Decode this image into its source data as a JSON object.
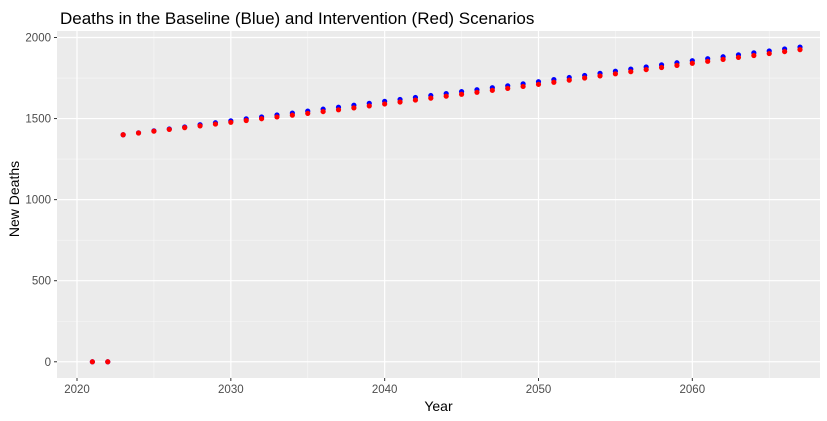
{
  "chart_data": {
    "type": "scatter",
    "title": "Deaths in the Baseline (Blue) and Intervention (Red) Scenarios",
    "xlabel": "Year",
    "ylabel": "New Deaths",
    "xlim": [
      2018.7,
      2068.3
    ],
    "ylim": [
      -100,
      2040
    ],
    "x_ticks": [
      2020,
      2030,
      2040,
      2050,
      2060
    ],
    "x_tick_labels": [
      "2020",
      "2030",
      "2040",
      "2050",
      "2060"
    ],
    "y_ticks": [
      0,
      500,
      1000,
      1500,
      2000
    ],
    "y_tick_labels": [
      "0",
      "500",
      "1000",
      "1500",
      "2000"
    ],
    "grid": true,
    "legend": "none",
    "x": [
      2021,
      2022,
      2023,
      2024,
      2025,
      2026,
      2027,
      2028,
      2029,
      2030,
      2031,
      2032,
      2033,
      2034,
      2035,
      2036,
      2037,
      2038,
      2039,
      2040,
      2041,
      2042,
      2043,
      2044,
      2045,
      2046,
      2047,
      2048,
      2049,
      2050,
      2051,
      2052,
      2053,
      2054,
      2055,
      2056,
      2057,
      2058,
      2059,
      2060,
      2061,
      2062,
      2063,
      2064,
      2065,
      2066,
      2067
    ],
    "series": [
      {
        "color": "#0000ff",
        "values": [
          0,
          0,
          1400,
          1412,
          1424,
          1436,
          1448,
          1462,
          1474,
          1486,
          1498,
          1510,
          1522,
          1534,
          1546,
          1558,
          1570,
          1582,
          1594,
          1606,
          1618,
          1630,
          1642,
          1654,
          1666,
          1678,
          1690,
          1702,
          1714,
          1727,
          1740,
          1753,
          1766,
          1779,
          1792,
          1805,
          1818,
          1831,
          1844,
          1857,
          1869,
          1881,
          1893,
          1905,
          1917,
          1929,
          1941
        ]
      },
      {
        "color": "#ff0000",
        "values": [
          0,
          0,
          1400,
          1411,
          1422,
          1433,
          1444,
          1455,
          1466,
          1477,
          1488,
          1499,
          1510,
          1521,
          1532,
          1543,
          1554,
          1566,
          1578,
          1590,
          1602,
          1614,
          1626,
          1638,
          1650,
          1662,
          1674,
          1686,
          1698,
          1711,
          1724,
          1737,
          1750,
          1763,
          1776,
          1789,
          1802,
          1815,
          1828,
          1841,
          1853,
          1865,
          1877,
          1889,
          1901,
          1913,
          1925
        ]
      }
    ]
  }
}
